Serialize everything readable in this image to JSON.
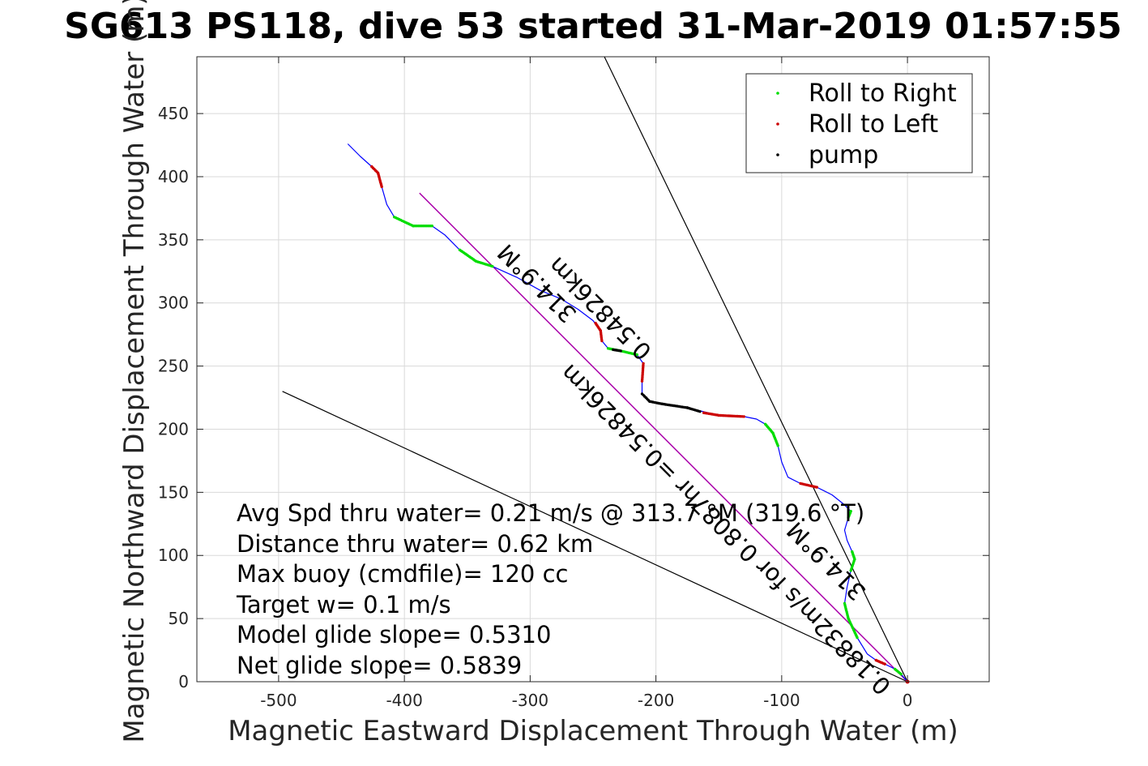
{
  "chart_data": {
    "type": "line",
    "title": "SG613 PS118, dive 53 started 31-Mar-2019 01:57:55",
    "xlabel": "Magnetic Eastward Displacement Through Water (m)",
    "ylabel": "Magnetic Northward Displacement Through Water (m)",
    "xlim": [
      -565,
      65
    ],
    "ylim": [
      0,
      495
    ],
    "xticks": [
      -500,
      -400,
      -300,
      -200,
      -100,
      0
    ],
    "yticks": [
      0,
      50,
      100,
      150,
      200,
      250,
      300,
      350,
      400,
      450
    ],
    "grid": true,
    "legend_position": "top-right",
    "legend": [
      "Roll to Right",
      "Roll to Left",
      "pump"
    ],
    "colors": {
      "track": "#0000ff",
      "roll_right": "#00dd00",
      "roll_left": "#cc0000",
      "pump": "#000000",
      "net_line": "#aa00aa",
      "guide_line": "#000000"
    },
    "track": [
      [
        0,
        0
      ],
      [
        -5,
        6
      ],
      [
        -10,
        10
      ],
      [
        -18,
        14
      ],
      [
        -25,
        17
      ],
      [
        -32,
        22
      ],
      [
        -40,
        35
      ],
      [
        -47,
        50
      ],
      [
        -50,
        62
      ],
      [
        -48,
        75
      ],
      [
        -45,
        88
      ],
      [
        -42,
        97
      ],
      [
        -44,
        103
      ],
      [
        -48,
        112
      ],
      [
        -50,
        120
      ],
      [
        -47,
        130
      ],
      [
        -45,
        135
      ],
      [
        -50,
        140
      ],
      [
        -60,
        148
      ],
      [
        -72,
        154
      ],
      [
        -85,
        157
      ],
      [
        -95,
        162
      ],
      [
        -100,
        174
      ],
      [
        -103,
        187
      ],
      [
        -107,
        197
      ],
      [
        -113,
        204
      ],
      [
        -120,
        208
      ],
      [
        -130,
        210
      ],
      [
        -150,
        211
      ],
      [
        -175,
        217
      ],
      [
        -195,
        220
      ],
      [
        -205,
        222
      ],
      [
        -211,
        228
      ],
      [
        -211,
        238
      ],
      [
        -210,
        252
      ],
      [
        -215,
        259
      ],
      [
        -228,
        262
      ],
      [
        -238,
        264
      ],
      [
        -243,
        270
      ],
      [
        -244,
        278
      ],
      [
        -250,
        286
      ],
      [
        -262,
        295
      ],
      [
        -275,
        303
      ],
      [
        -292,
        310
      ],
      [
        -310,
        320
      ],
      [
        -330,
        329
      ],
      [
        -343,
        333
      ],
      [
        -356,
        342
      ],
      [
        -368,
        354
      ],
      [
        -378,
        361
      ],
      [
        -393,
        361
      ],
      [
        -408,
        368
      ],
      [
        -414,
        378
      ],
      [
        -418,
        392
      ],
      [
        -421,
        403
      ],
      [
        -426,
        408
      ],
      [
        -435,
        416
      ],
      [
        -445,
        426
      ]
    ],
    "roll_right_segments": [
      [
        [
          -5,
          6
        ],
        [
          -10,
          10
        ]
      ],
      [
        [
          -40,
          35
        ],
        [
          -47,
          50
        ],
        [
          -50,
          62
        ]
      ],
      [
        [
          -45,
          88
        ],
        [
          -42,
          97
        ],
        [
          -44,
          103
        ]
      ],
      [
        [
          -47,
          130
        ],
        [
          -45,
          135
        ]
      ],
      [
        [
          -103,
          187
        ],
        [
          -107,
          197
        ],
        [
          -113,
          204
        ]
      ],
      [
        [
          -215,
          259
        ],
        [
          -228,
          262
        ],
        [
          -238,
          264
        ]
      ],
      [
        [
          -330,
          329
        ],
        [
          -343,
          333
        ],
        [
          -356,
          342
        ]
      ],
      [
        [
          -378,
          361
        ],
        [
          -393,
          361
        ],
        [
          -408,
          368
        ]
      ]
    ],
    "roll_left_segments": [
      [
        [
          -18,
          14
        ],
        [
          -25,
          17
        ]
      ],
      [
        [
          -72,
          154
        ],
        [
          -85,
          157
        ]
      ],
      [
        [
          -130,
          210
        ],
        [
          -150,
          211
        ],
        [
          -162,
          213
        ]
      ],
      [
        [
          -210,
          252
        ],
        [
          -211,
          238
        ]
      ],
      [
        [
          -243,
          270
        ],
        [
          -244,
          278
        ],
        [
          -248,
          284
        ]
      ],
      [
        [
          -418,
          392
        ],
        [
          -421,
          403
        ],
        [
          -426,
          408
        ]
      ]
    ],
    "pump_segments": [
      [
        [
          -211,
          228
        ],
        [
          -205,
          222
        ],
        [
          -195,
          220
        ],
        [
          -175,
          217
        ],
        [
          -165,
          214
        ]
      ],
      [
        [
          -228,
          262
        ],
        [
          -234,
          263
        ]
      ]
    ],
    "net_line": [
      [
        0,
        0
      ],
      [
        -388,
        387
      ]
    ],
    "guide_lines": [
      [
        [
          0,
          0
        ],
        [
          -241,
          495
        ]
      ],
      [
        [
          0,
          0
        ],
        [
          -497,
          230
        ]
      ]
    ],
    "rotated_labels": [
      {
        "text": "314.9°M",
        "x": -290,
        "y": 320,
        "angle_deg": 45
      },
      {
        "text": "0.54826km",
        "x": -240,
        "y": 300,
        "angle_deg": 45
      },
      {
        "text": "0.18832m/s for 0.8087hr =0.54826km",
        "x": -140,
        "y": 125,
        "angle_deg": 45
      },
      {
        "text": "314.9°M",
        "x": -60,
        "y": 100,
        "angle_deg": 45
      }
    ],
    "annotations": [
      "Avg Spd thru water=  0.21 m/s @ 313.7 °M (319.6 °T)",
      "Distance thru water=  0.62 km",
      "Max buoy (cmdfile)= 120 cc",
      "Target w= 0.1 m/s",
      "Model glide slope= 0.5310",
      "Net glide slope= 0.5839"
    ]
  }
}
